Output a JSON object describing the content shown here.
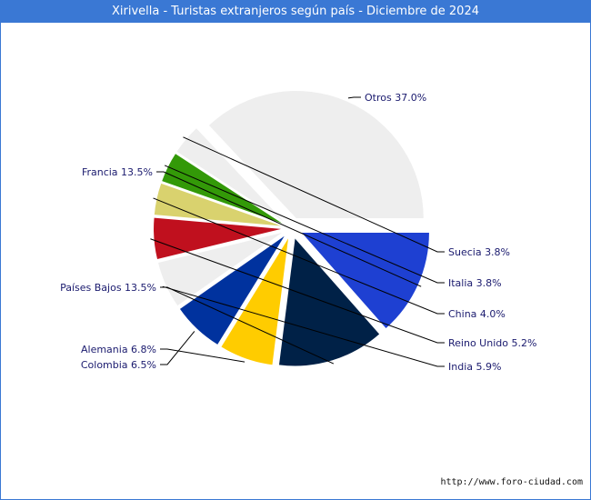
{
  "chart_data": {
    "type": "pie",
    "title": "Xirivella - Turistas extranjeros según país - Diciembre de 2024",
    "slices": [
      {
        "name": "Otros",
        "value": 37.0,
        "label": "Otros 37.0%",
        "color": "#eeeeee"
      },
      {
        "name": "Suecia",
        "value": 3.8,
        "label": "Suecia 3.8%",
        "color": "#eeeeee"
      },
      {
        "name": "Italia",
        "value": 3.8,
        "label": "Italia 3.8%",
        "color": "#339908"
      },
      {
        "name": "China",
        "value": 4.0,
        "label": "China 4.0%",
        "color": "#d9d26e"
      },
      {
        "name": "Reino Unido",
        "value": 5.2,
        "label": "Reino Unido 5.2%",
        "color": "#c0101e"
      },
      {
        "name": "India",
        "value": 5.9,
        "label": "India 5.9%",
        "color": "#eeeeee"
      },
      {
        "name": "Colombia",
        "value": 6.5,
        "label": "Colombia 6.5%",
        "color": "#00329e"
      },
      {
        "name": "Alemania",
        "value": 6.8,
        "label": "Alemania 6.8%",
        "color": "#ffcc00"
      },
      {
        "name": "Países Bajos",
        "value": 13.5,
        "label": "Países Bajos 13.5%",
        "color": "#002147"
      },
      {
        "name": "Francia",
        "value": 13.5,
        "label": "Francia 13.5%",
        "color": "#1e40d2"
      }
    ]
  },
  "footer": {
    "source_url": "http://www.foro-ciudad.com"
  },
  "colors": {
    "title_bar": "#3a78d4",
    "label_text": "#1a1a6e"
  }
}
